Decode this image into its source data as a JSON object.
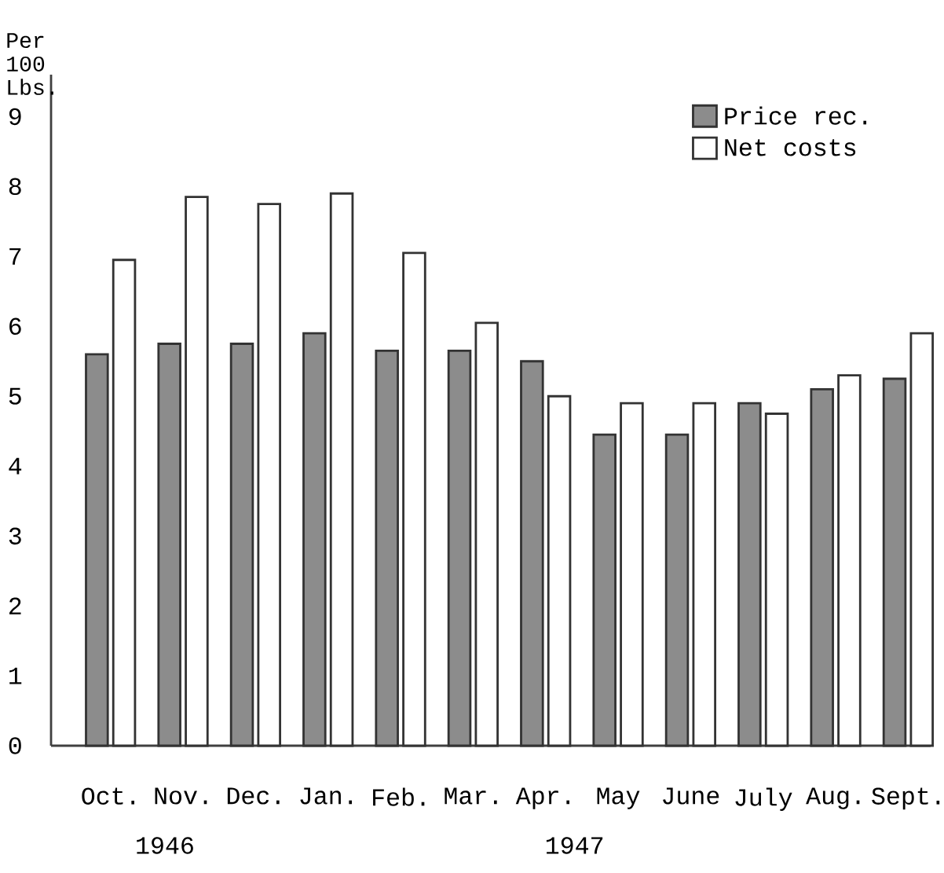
{
  "chart_data": {
    "type": "bar",
    "ylabel": "Per 100 Lbs.",
    "categories": [
      "Oct.",
      "Nov.",
      "Dec.",
      "Jan.",
      "Feb.",
      "Mar.",
      "Apr.",
      "May",
      "June",
      "July",
      "Aug.",
      "Sept."
    ],
    "series": [
      {
        "name": "Price rec.",
        "color": "#8c8c8c",
        "values": [
          5.6,
          5.75,
          5.75,
          5.9,
          5.65,
          5.65,
          5.5,
          4.45,
          4.45,
          4.9,
          5.1,
          5.25
        ]
      },
      {
        "name": "Net costs",
        "color": "#ffffff",
        "values": [
          6.95,
          7.85,
          7.75,
          7.9,
          7.05,
          6.05,
          5.0,
          4.9,
          4.9,
          4.75,
          5.3,
          5.9
        ]
      }
    ],
    "ylim": [
      0,
      9.6
    ],
    "yticks": [
      0,
      1,
      2,
      3,
      4,
      5,
      6,
      7,
      8,
      9
    ],
    "legend": "top right",
    "annotations": [
      "1946",
      "1947"
    ]
  }
}
